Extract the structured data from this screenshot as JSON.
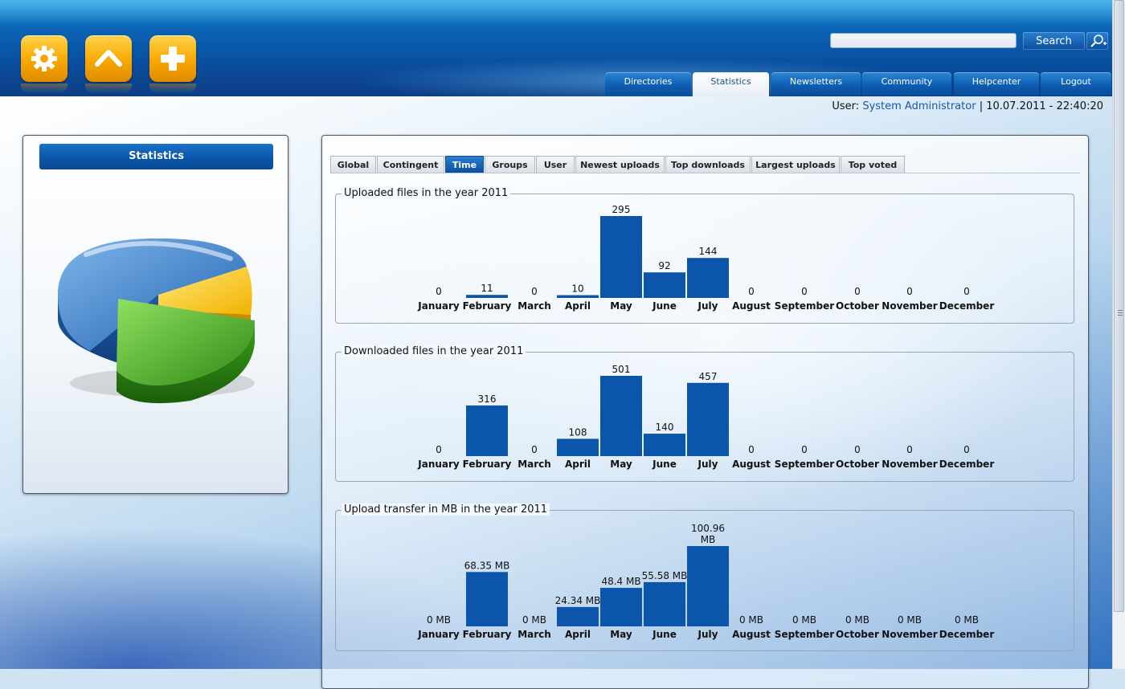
{
  "header": {
    "icons": [
      "settings-icon",
      "home-icon",
      "add-icon"
    ],
    "search": {
      "placeholder": "",
      "button_label": "Search",
      "advanced_icon": "advanced-search-icon"
    },
    "nav": [
      {
        "label": "Directories",
        "active": false
      },
      {
        "label": "Statistics",
        "active": true
      },
      {
        "label": "Newsletters",
        "active": false
      },
      {
        "label": "Community",
        "active": false
      },
      {
        "label": "Helpcenter",
        "active": false
      },
      {
        "label": "Logout",
        "active": false
      }
    ]
  },
  "userbar": {
    "prefix": "User:",
    "username": "System Administrator",
    "separator": "|",
    "datetime": "10.07.2011 - 22:40:20"
  },
  "sidebar": {
    "title": "Statistics",
    "image": "pie-chart-illustration"
  },
  "tabs": [
    {
      "label": "Global",
      "active": false
    },
    {
      "label": "Contingent",
      "active": false
    },
    {
      "label": "Time",
      "active": true
    },
    {
      "label": "Groups",
      "active": false
    },
    {
      "label": "User",
      "active": false
    },
    {
      "label": "Newest uploads",
      "active": false
    },
    {
      "label": "Top downloads",
      "active": false
    },
    {
      "label": "Largest uploads",
      "active": false
    },
    {
      "label": "Top voted",
      "active": false
    }
  ],
  "colors": {
    "bar": "#0b56aa",
    "accent": "#0b56aa"
  },
  "chart_data": [
    {
      "type": "bar",
      "title": "Uploaded files in the year 2011",
      "categories": [
        "January",
        "February",
        "March",
        "April",
        "May",
        "June",
        "July",
        "August",
        "September",
        "October",
        "November",
        "December"
      ],
      "values": [
        0,
        11,
        0,
        10,
        295,
        92,
        144,
        0,
        0,
        0,
        0,
        0
      ],
      "labels": [
        "0",
        "11",
        "0",
        "10",
        "295",
        "92",
        "144",
        "0",
        "0",
        "0",
        "0",
        "0"
      ]
    },
    {
      "type": "bar",
      "title": "Downloaded files in the year 2011",
      "categories": [
        "January",
        "February",
        "March",
        "April",
        "May",
        "June",
        "July",
        "August",
        "September",
        "October",
        "November",
        "December"
      ],
      "values": [
        0,
        316,
        0,
        108,
        501,
        140,
        457,
        0,
        0,
        0,
        0,
        0
      ],
      "labels": [
        "0",
        "316",
        "0",
        "108",
        "501",
        "140",
        "457",
        "0",
        "0",
        "0",
        "0",
        "0"
      ]
    },
    {
      "type": "bar",
      "title": "Upload transfer in MB in the year 2011",
      "categories": [
        "January",
        "February",
        "March",
        "April",
        "May",
        "June",
        "July",
        "August",
        "September",
        "October",
        "November",
        "December"
      ],
      "values": [
        0,
        68.35,
        0,
        24.34,
        48.4,
        55.58,
        100.96,
        0,
        0,
        0,
        0,
        0
      ],
      "labels": [
        "0 MB",
        "68.35 MB",
        "0 MB",
        "24.34 MB",
        "48.4 MB",
        "55.58 MB",
        "100.96 MB",
        "0 MB",
        "0 MB",
        "0 MB",
        "0 MB",
        "0 MB"
      ]
    }
  ]
}
